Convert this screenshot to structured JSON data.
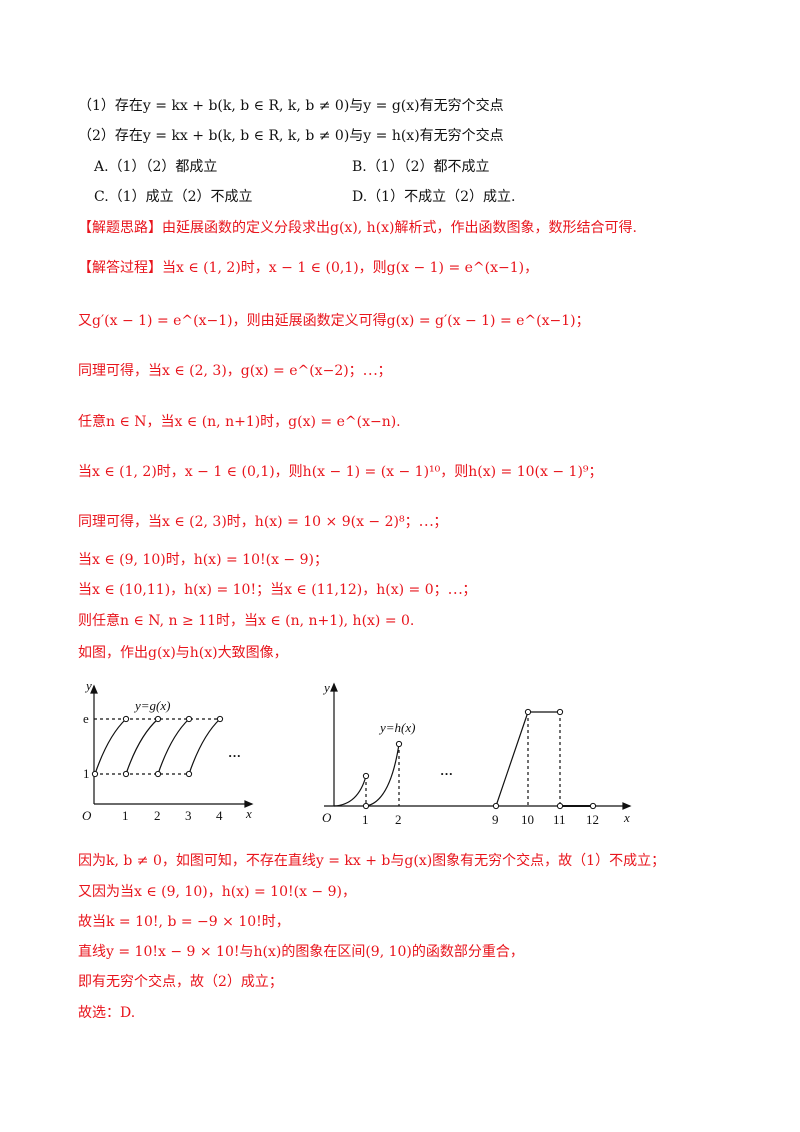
{
  "lines": [
    {
      "text": "（1）存在y = kx + b(k, b ∈ R, k, b ≠ 0)与y = g(x)有无穷个交点",
      "color": "#111111"
    },
    {
      "text": "（2）存在y = kx + b(k, b ∈ R, k, b ≠ 0)与y = h(x)有无穷个交点",
      "color": "#111111"
    },
    {
      "text": "A.（1）（2）都成立",
      "color": "#111111"
    },
    {
      "text": "B.（1）（2）都不成立",
      "color": "#111111"
    },
    {
      "text": "C.（1）成立（2）不成立",
      "color": "#111111"
    },
    {
      "text": "D.（1）不成立（2）成立.",
      "color": "#111111"
    },
    {
      "text": "【解题思路】由延展函数的定义分段求出g(x), h(x)解析式，作出函数图象，数形结合可得.",
      "color": "#e8141c"
    },
    {
      "text": "【解答过程】当x ∈ (1, 2)时，x − 1 ∈ (0,1)，则g(x − 1) = e^(x−1)，",
      "color": "#e8141c"
    },
    {
      "text": "又g′(x − 1) = e^(x−1)，则由延展函数定义可得g(x) = g′(x − 1) = e^(x−1)；",
      "color": "#e8141c"
    },
    {
      "text": "同理可得，当x ∈ (2, 3)，g(x) = e^(x−2)；⋯；",
      "color": "#e8141c"
    },
    {
      "text": "任意n ∈ N，当x ∈ (n, n+1)时，g(x) = e^(x−n).",
      "color": "#e8141c"
    },
    {
      "text": "当x ∈ (1, 2)时，x − 1 ∈ (0,1)，则h(x − 1) = (x − 1)¹⁰，则h(x) = 10(x − 1)⁹；",
      "color": "#e8141c"
    },
    {
      "text": "同理可得，当x ∈ (2, 3)时，h(x) = 10 × 9(x − 2)⁸；⋯；",
      "color": "#e8141c"
    },
    {
      "text": "当x ∈ (9, 10)时，h(x) = 10!(x − 9)；",
      "color": "#e8141c"
    },
    {
      "text": "当x ∈ (10,11)，h(x) = 10!；当x ∈ (11,12)，h(x) = 0；⋯；",
      "color": "#e8141c"
    },
    {
      "text": "则任意n ∈ N, n ≥ 11时，当x ∈ (n, n+1), h(x) = 0.",
      "color": "#e8141c"
    },
    {
      "text": "如图，作出g(x)与h(x)大致图像，",
      "color": "#e8141c"
    },
    {
      "text": "因为k, b ≠ 0，如图可知，不存在直线y = kx + b与g(x)图象有无穷个交点，故（1）不成立；",
      "color": "#e8141c"
    },
    {
      "text": "又因为当x ∈ (9, 10)，h(x) = 10!(x − 9)，",
      "color": "#e8141c"
    },
    {
      "text": "故当k = 10!, b = −9 × 10!时，",
      "color": "#e8141c"
    },
    {
      "text": "直线y = 10!x − 9 × 10!与h(x)的图象在区间(9, 10)的函数部分重合，",
      "color": "#e8141c"
    },
    {
      "text": "即有无穷个交点，故（2）成立；",
      "color": "#e8141c"
    },
    {
      "text": "故选：D.",
      "color": "#e8141c"
    }
  ],
  "graph_g": {
    "title": "y=g(x)",
    "y_axis": "y",
    "x_axis": "x",
    "origin": "O",
    "ticks_x": [
      "1",
      "2",
      "3",
      "4"
    ],
    "ticks_y": [
      "1",
      "e"
    ],
    "ellipsis": "···"
  },
  "graph_h": {
    "title": "y=h(x)",
    "y_axis": "y",
    "x_axis": "x",
    "origin": "O",
    "ticks_x": [
      "1",
      "2",
      "9",
      "10",
      "11",
      "12"
    ],
    "ellipsis": "···"
  }
}
